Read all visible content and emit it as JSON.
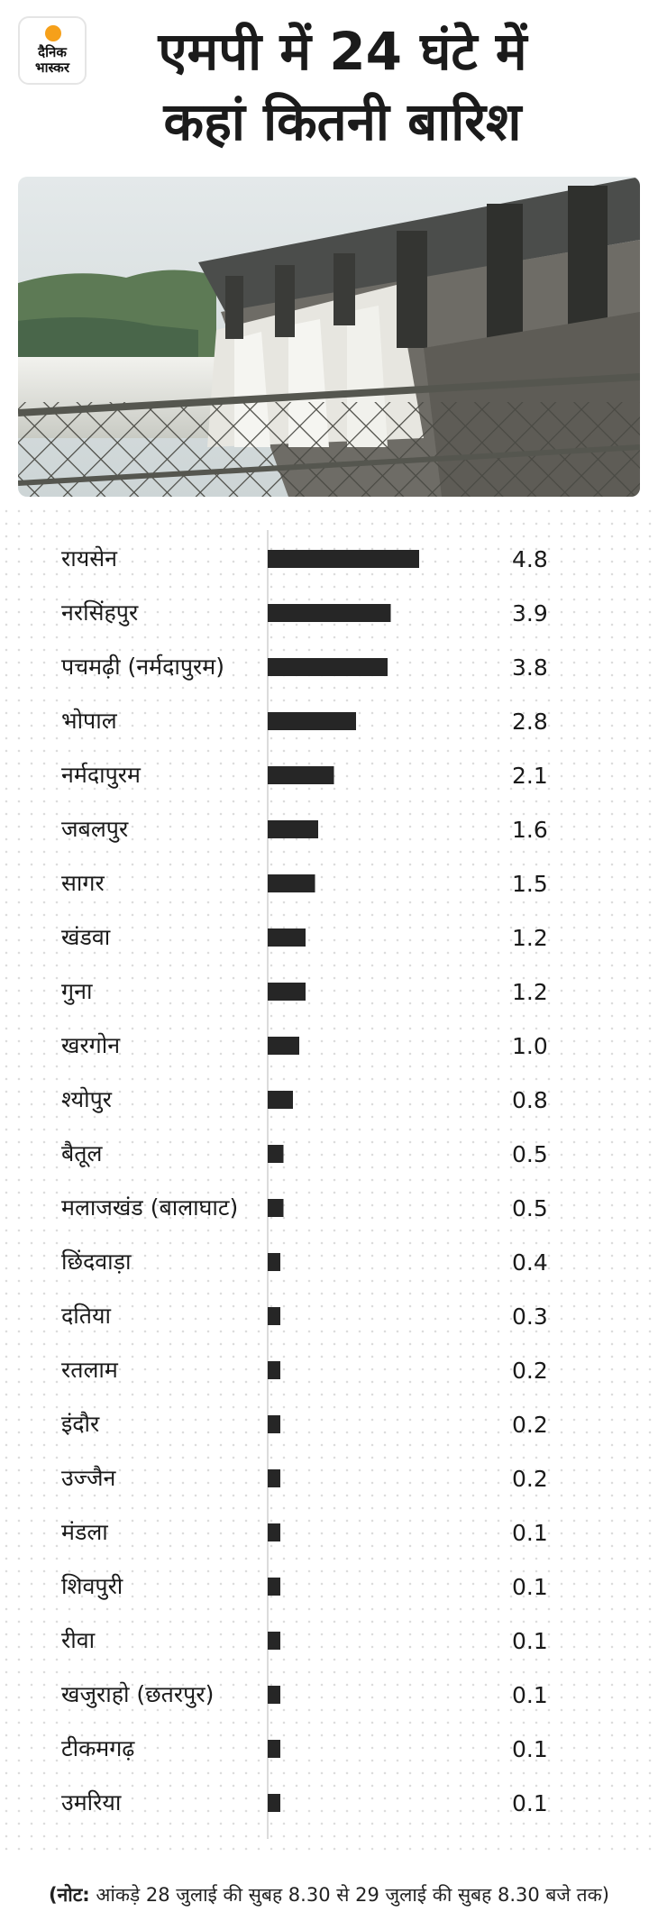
{
  "logo": {
    "line1": "दैनिक",
    "line2": "भास्कर"
  },
  "title_line1": "एमपी में 24 घंटे में",
  "title_line2": "कहां कितनी बारिश",
  "photo": {
    "icon": "dam-photo-icon"
  },
  "colors": {
    "bar": "#262626",
    "axis": "#cfcfcf",
    "logo_sun": "#f6a01a"
  },
  "chart_data": {
    "type": "bar",
    "orientation": "horizontal",
    "categories": [
      "रायसेन",
      "नरसिंहपुर",
      "पचमढ़ी (नर्मदापुरम)",
      "भोपाल",
      "नर्मदापुरम",
      "जबलपुर",
      "सागर",
      "खंडवा",
      "गुना",
      "खरगोन",
      "श्योपुर",
      "बैतूल",
      "मलाजखंड (बालाघाट)",
      "छिंदवाड़ा",
      "दतिया",
      "रतलाम",
      "इंदौर",
      "उज्जैन",
      "मंडला",
      "शिवपुरी",
      "रीवा",
      "खजुराहो (छतरपुर)",
      "टीकमगढ़",
      "उमरिया"
    ],
    "values": [
      4.8,
      3.9,
      3.8,
      2.8,
      2.1,
      1.6,
      1.5,
      1.2,
      1.2,
      1.0,
      0.8,
      0.5,
      0.5,
      0.4,
      0.3,
      0.2,
      0.2,
      0.2,
      0.1,
      0.1,
      0.1,
      0.1,
      0.1,
      0.1
    ],
    "value_labels": [
      "4.8",
      "3.9",
      "3.8",
      "2.8",
      "2.1",
      "1.6",
      "1.5",
      "1.2",
      "1.2",
      "1.0",
      "0.8",
      "0.5",
      "0.5",
      "0.4",
      "0.3",
      "0.2",
      "0.2",
      "0.2",
      "0.1",
      "0.1",
      "0.1",
      "0.1",
      "0.1",
      "0.1"
    ],
    "title": "",
    "xlabel": "",
    "ylabel": "",
    "xlim": [
      0,
      6
    ],
    "grid": false,
    "legend": "none"
  },
  "note": {
    "prefix": "(नोट:",
    "text": " आंकड़े 28 जुलाई की सुबह 8.30 से 29 जुलाई की सुबह 8.30 बजे तक)"
  }
}
